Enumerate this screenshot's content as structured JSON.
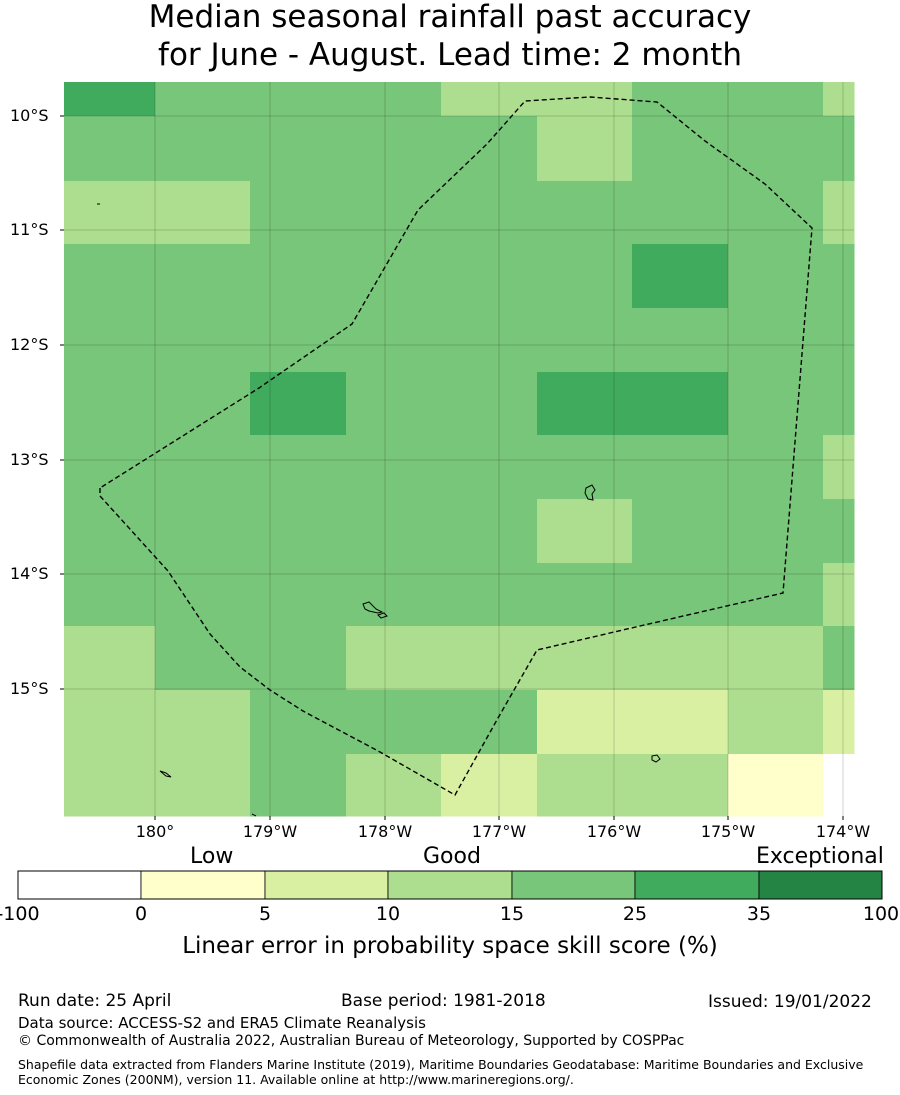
{
  "title": {
    "line1": "Median seasonal rainfall past accuracy",
    "line2": "for June - August. Lead time: 2 month"
  },
  "map": {
    "lat_labels": [
      "10°S",
      "11°S",
      "12°S",
      "13°S",
      "14°S",
      "15°S"
    ],
    "lon_labels": [
      "180°",
      "179°W",
      "178°W",
      "177°W",
      "176°W",
      "175°W",
      "174°W"
    ],
    "grid": [
      [
        5,
        4,
        4,
        4,
        3,
        3,
        4,
        4,
        3
      ],
      [
        4,
        4,
        4,
        4,
        4,
        3,
        4,
        4,
        4
      ],
      [
        3,
        3,
        4,
        4,
        4,
        4,
        4,
        4,
        3
      ],
      [
        4,
        4,
        4,
        4,
        4,
        4,
        5,
        4,
        4
      ],
      [
        4,
        4,
        4,
        4,
        4,
        4,
        4,
        4,
        4
      ],
      [
        4,
        4,
        5,
        4,
        4,
        5,
        5,
        4,
        4
      ],
      [
        4,
        4,
        4,
        4,
        4,
        4,
        4,
        4,
        3
      ],
      [
        4,
        4,
        4,
        4,
        4,
        3,
        4,
        4,
        4
      ],
      [
        4,
        4,
        4,
        4,
        4,
        4,
        4,
        4,
        3
      ],
      [
        3,
        4,
        4,
        3,
        3,
        3,
        3,
        3,
        4
      ],
      [
        3,
        3,
        4,
        4,
        4,
        2,
        2,
        3,
        2
      ],
      [
        3,
        3,
        4,
        3,
        2,
        3,
        3,
        1,
        0
      ]
    ]
  },
  "legend": {
    "categories": [
      "Low",
      "Good",
      "Exceptional"
    ],
    "ticks": [
      "-100",
      "0",
      "5",
      "10",
      "15",
      "25",
      "35",
      "100"
    ],
    "colors": [
      "#ffffff",
      "#ffffcc",
      "#d9f0a3",
      "#addd8e",
      "#78c679",
      "#41ab5d",
      "#238443"
    ],
    "label": "Linear error in probability space skill score (%)"
  },
  "footer": {
    "run_date": "Run date: 25 April",
    "base_period": "Base period: 1981-2018",
    "issued": "Issued: 19/01/2022",
    "data_source": "Data source: ACCESS-S2 and ERA5 Climate Reanalysis",
    "copyright": "© Commonwealth of Australia 2022, Australian Bureau of Meteorology, Supported by COSPPac",
    "shapefile": "Shapefile data extracted from Flanders Marine Institute (2019), Maritime Boundaries Geodatabase: Maritime Boundaries and Exclusive Economic Zones (200NM), version 11. Available online at http://www.marineregions.org/."
  }
}
